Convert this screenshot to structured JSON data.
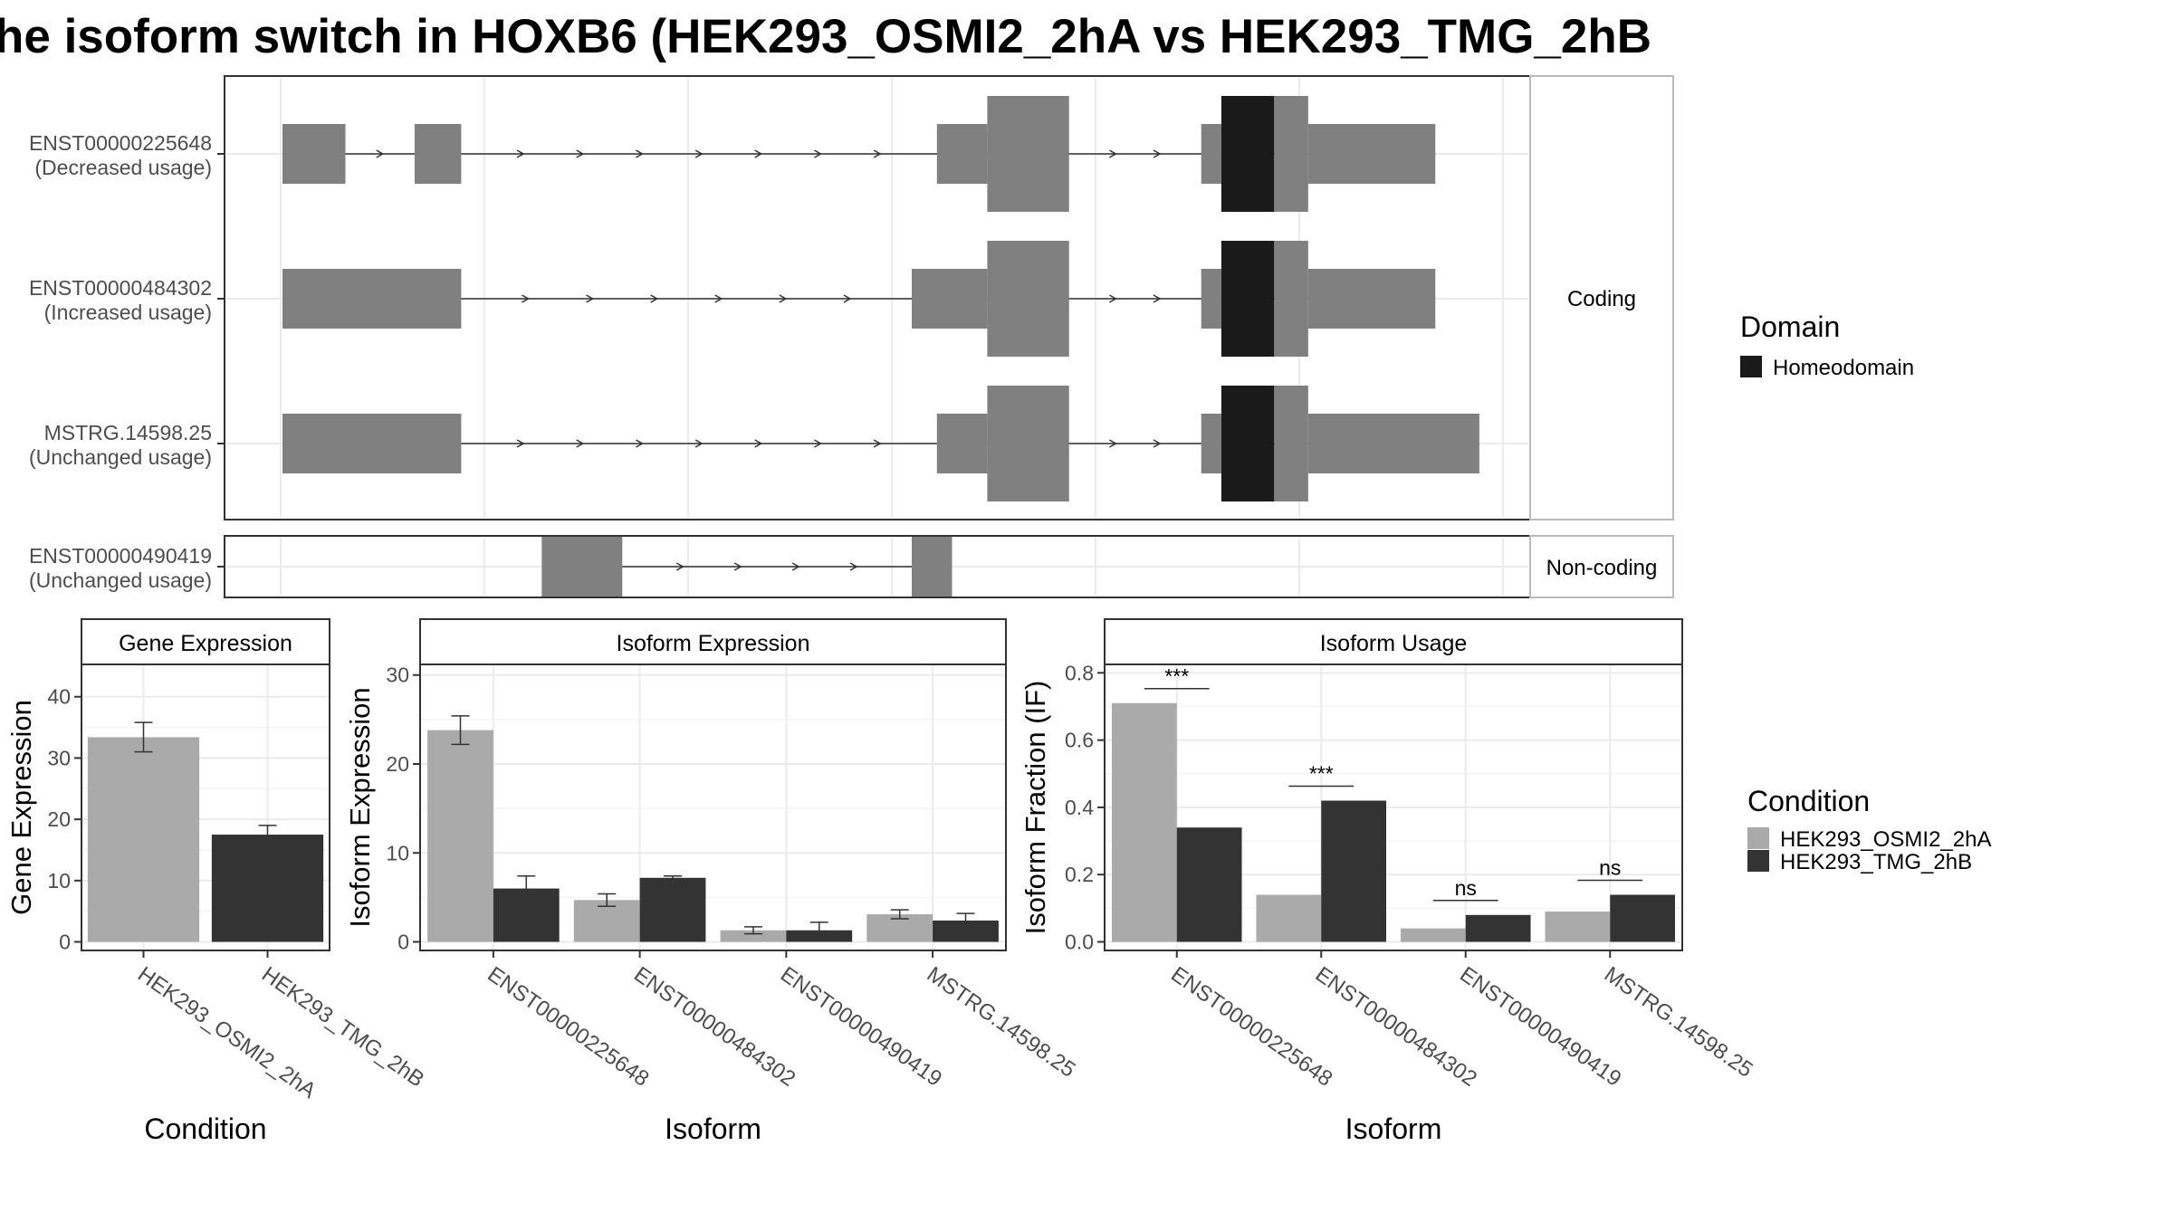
{
  "title": "he isoform switch in HOXB6 (HEK293_OSMI2_2hA vs HEK293_TMG_2hB",
  "colors": {
    "exon": "#808080",
    "domain": "#1a1a1a",
    "condA": "#aaaaaa",
    "condB": "#333333",
    "grid": "#ebebeb",
    "panel_border": "#333333",
    "strip_border": "#bbbbbb"
  },
  "structure": {
    "coding_strip": "Coding",
    "noncoding_strip": "Non-coding",
    "transcripts": [
      {
        "id": "ENST00000225648",
        "usage": "(Decreased usage)",
        "group": "coding",
        "exons": [
          [
            0.0,
            0.05,
            "u"
          ],
          [
            0.105,
            0.142,
            "u"
          ],
          [
            0.52,
            0.56,
            "u"
          ],
          [
            0.56,
            0.625,
            "c"
          ],
          [
            0.73,
            0.746,
            "u"
          ],
          [
            0.746,
            0.788,
            "d"
          ],
          [
            0.788,
            0.815,
            "c"
          ],
          [
            0.815,
            0.916,
            "u"
          ]
        ]
      },
      {
        "id": "ENST00000484302",
        "usage": "(Increased usage)",
        "group": "coding",
        "exons": [
          [
            0.0,
            0.142,
            "u"
          ],
          [
            0.5,
            0.56,
            "u"
          ],
          [
            0.56,
            0.625,
            "c"
          ],
          [
            0.73,
            0.746,
            "u"
          ],
          [
            0.746,
            0.788,
            "d"
          ],
          [
            0.788,
            0.815,
            "c"
          ],
          [
            0.815,
            0.916,
            "u"
          ]
        ]
      },
      {
        "id": "MSTRG.14598.25",
        "usage": "(Unchanged usage)",
        "group": "coding",
        "exons": [
          [
            0.0,
            0.142,
            "u"
          ],
          [
            0.52,
            0.56,
            "u"
          ],
          [
            0.56,
            0.625,
            "c"
          ],
          [
            0.73,
            0.746,
            "u"
          ],
          [
            0.746,
            0.788,
            "d"
          ],
          [
            0.788,
            0.815,
            "c"
          ],
          [
            0.815,
            0.951,
            "u"
          ]
        ]
      },
      {
        "id": "ENST00000490419",
        "usage": "(Unchanged usage)",
        "group": "noncoding",
        "exons": [
          [
            0.206,
            0.27,
            "u"
          ],
          [
            0.5,
            0.532,
            "u"
          ]
        ]
      }
    ],
    "legend_title": "Domain",
    "legend_items": [
      "Homeodomain"
    ]
  },
  "chart_data": [
    {
      "type": "bar",
      "panel": "Gene Expression",
      "xlabel": "Condition",
      "ylabel": "Gene Expression",
      "ylim": [
        0,
        45
      ],
      "yticks": [
        0,
        10,
        20,
        30,
        40
      ],
      "categories": [
        "HEK293_OSMI2_2hA",
        "HEK293_TMG_2hB"
      ],
      "values": [
        33.4,
        17.5
      ],
      "errors": [
        2.4,
        1.5
      ]
    },
    {
      "type": "bar",
      "panel": "Isoform Expression",
      "xlabel": "Isoform",
      "ylabel": "Isoform Expression",
      "ylim": [
        0,
        31
      ],
      "yticks": [
        0,
        10,
        20,
        30
      ],
      "categories": [
        "ENST00000225648",
        "ENST00000484302",
        "ENST00000490419",
        "MSTRG.14598.25"
      ],
      "series": [
        {
          "name": "HEK293_OSMI2_2hA",
          "values": [
            23.8,
            4.7,
            1.3,
            3.1
          ],
          "errors": [
            1.6,
            0.7,
            0.4,
            0.5
          ]
        },
        {
          "name": "HEK293_TMG_2hB",
          "values": [
            6.0,
            7.2,
            1.3,
            2.4
          ],
          "errors": [
            1.4,
            0.2,
            0.9,
            0.8
          ]
        }
      ]
    },
    {
      "type": "bar",
      "panel": "Isoform Usage",
      "xlabel": "Isoform",
      "ylabel": "Isoform Fraction (IF)",
      "ylim": [
        0,
        0.82
      ],
      "yticks": [
        "0.0",
        "0.2",
        "0.4",
        "0.6",
        "0.8"
      ],
      "categories": [
        "ENST00000225648",
        "ENST00000484302",
        "ENST00000490419",
        "MSTRG.14598.25"
      ],
      "series": [
        {
          "name": "HEK293_OSMI2_2hA",
          "values": [
            0.71,
            0.14,
            0.04,
            0.09
          ]
        },
        {
          "name": "HEK293_TMG_2hB",
          "values": [
            0.34,
            0.42,
            0.08,
            0.14
          ]
        }
      ],
      "significance": [
        "***",
        "***",
        "ns",
        "ns"
      ]
    }
  ],
  "condition_legend": {
    "title": "Condition",
    "items": [
      "HEK293_OSMI2_2hA",
      "HEK293_TMG_2hB"
    ]
  }
}
